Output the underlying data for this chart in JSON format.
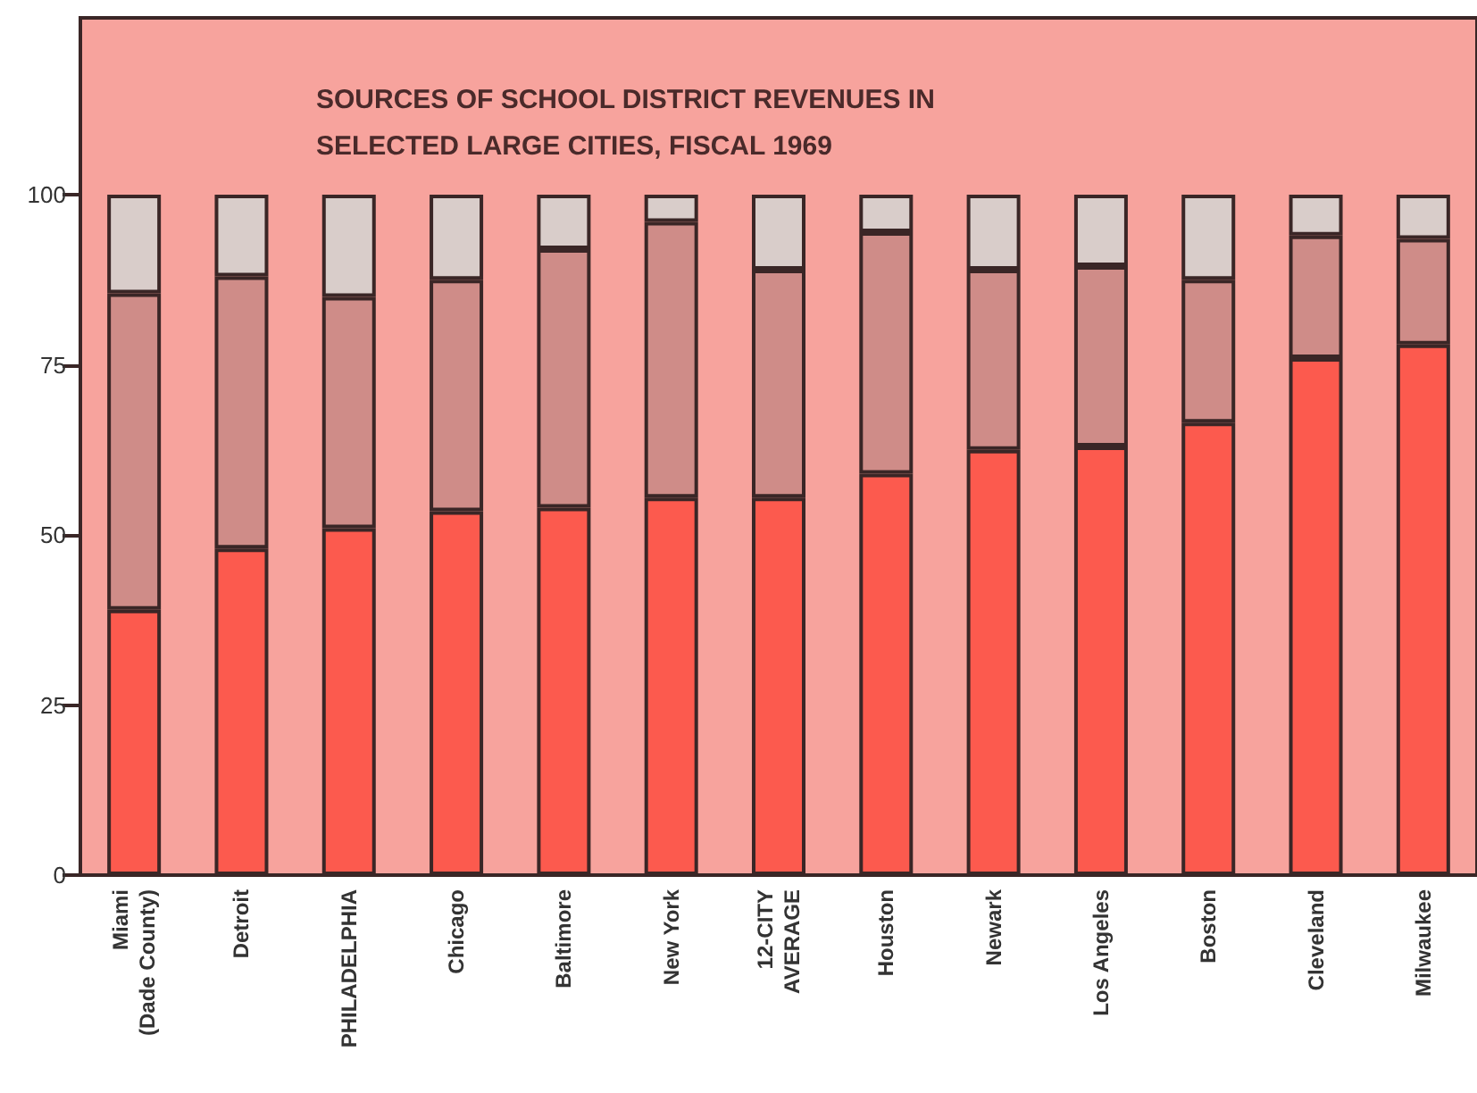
{
  "chart_data": {
    "type": "bar",
    "title": "SOURCES OF SCHOOL DISTRICT REVENUES IN\nSELECTED LARGE CITIES, FISCAL 1969",
    "categories": [
      "Miami\n(Dade County)",
      "Detroit",
      "PHILADELPHIA",
      "Chicago",
      "Baltimore",
      "New York",
      "12-CITY\nAVERAGE",
      "Houston",
      "Newark",
      "Los Angeles",
      "Boston",
      "Cleveland",
      "Milwaukee"
    ],
    "stacked": true,
    "series": [
      {
        "color": "#fc5a4e",
        "values": [
          39,
          48,
          51,
          53.5,
          54,
          55.5,
          55.5,
          59,
          62.5,
          63,
          66.5,
          76,
          78
        ]
      },
      {
        "color": "#cf8c88",
        "values": [
          46.5,
          40,
          34,
          34,
          38,
          40.5,
          33.5,
          35.5,
          26.5,
          26.5,
          21,
          18,
          15.5
        ]
      },
      {
        "color": "#d9cdca",
        "values": [
          14.5,
          12,
          15,
          12.5,
          8,
          4,
          11,
          5.5,
          11,
          10.5,
          12.5,
          6,
          6.5
        ]
      }
    ],
    "ylim": [
      0,
      126
    ],
    "yticks": [
      0,
      25,
      50,
      75,
      100
    ],
    "grid": false
  }
}
